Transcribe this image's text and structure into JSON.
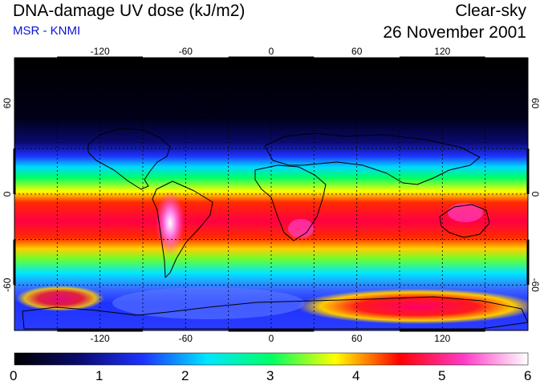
{
  "header": {
    "title": "DNA-damage UV dose (kJ/m2)",
    "subtitle": "MSR - KNMI",
    "sky": "Clear-sky",
    "date": "26 November 2001"
  },
  "map": {
    "lon_ticks": [
      "-120",
      "-60",
      "0",
      "60",
      "120"
    ],
    "lat_ticks_left": [
      "60",
      "0",
      "-60"
    ],
    "lat_ticks_right": [
      "60",
      "0",
      "-60"
    ]
  },
  "colorbar": {
    "labels": [
      "0",
      "1",
      "2",
      "3",
      "4",
      "5",
      "6"
    ],
    "min": 0,
    "max": 6,
    "stops": [
      "#000000",
      "#0a0a6e",
      "#1e32ff",
      "#00e6ff",
      "#00ff64",
      "#ffff00",
      "#ff0000",
      "#ff3cc8",
      "#ffffff"
    ]
  }
}
